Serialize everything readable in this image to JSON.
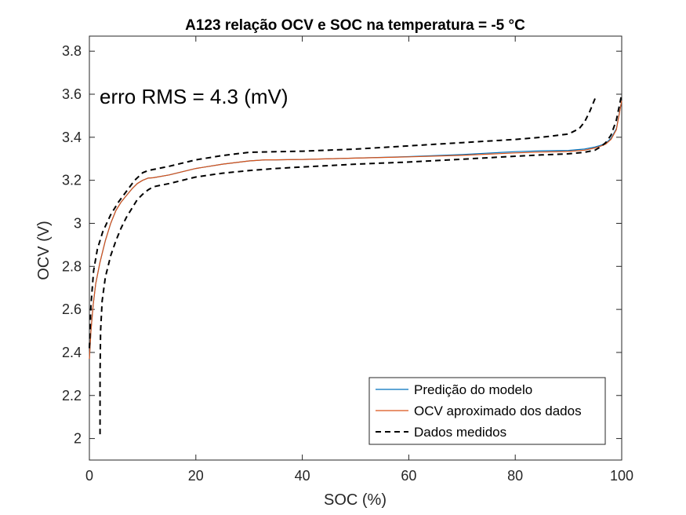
{
  "chart_data": {
    "type": "line",
    "title": "A123 relação OCV e SOC na temperatura = -5 °C",
    "xlabel": "SOC (%)",
    "ylabel": "OCV (V)",
    "xlim": [
      0,
      100
    ],
    "ylim": [
      1.9,
      3.87
    ],
    "xticks": [
      0,
      20,
      40,
      60,
      80,
      100
    ],
    "yticks": [
      2,
      2.2,
      2.4,
      2.6,
      2.8,
      3,
      3.2,
      3.4,
      3.6,
      3.8
    ],
    "grid": false,
    "legend_position": "bottom-right",
    "annotation": "erro RMS =  4.3 (mV)",
    "series": [
      {
        "name": "Predição do modelo",
        "color": "#0072BD",
        "style": "solid",
        "x": [
          0,
          0.3,
          0.7,
          1.2,
          2,
          3,
          4,
          5,
          6,
          7,
          8,
          9,
          10,
          11,
          12,
          15,
          20,
          25,
          30,
          33,
          35,
          40,
          50,
          60,
          70,
          80,
          85,
          90,
          93,
          95,
          96,
          97,
          98,
          99,
          100
        ],
        "y": [
          2.37,
          2.5,
          2.62,
          2.72,
          2.82,
          2.92,
          3.0,
          3.06,
          3.1,
          3.13,
          3.16,
          3.185,
          3.2,
          3.21,
          3.212,
          3.225,
          3.255,
          3.275,
          3.29,
          3.295,
          3.295,
          3.297,
          3.303,
          3.31,
          3.32,
          3.333,
          3.337,
          3.339,
          3.345,
          3.355,
          3.362,
          3.372,
          3.395,
          3.44,
          3.57
        ]
      },
      {
        "name": "OCV aproximado dos dados",
        "color": "#D95319",
        "style": "solid",
        "x": [
          0,
          0.3,
          0.7,
          1.2,
          2,
          3,
          4,
          5,
          6,
          7,
          8,
          9,
          10,
          11,
          12,
          15,
          20,
          25,
          30,
          33,
          35,
          40,
          50,
          60,
          70,
          80,
          85,
          90,
          93,
          95,
          96,
          97,
          98,
          99,
          100
        ],
        "y": [
          2.37,
          2.5,
          2.62,
          2.72,
          2.82,
          2.92,
          3.0,
          3.06,
          3.1,
          3.13,
          3.16,
          3.185,
          3.2,
          3.21,
          3.212,
          3.225,
          3.255,
          3.275,
          3.29,
          3.295,
          3.295,
          3.297,
          3.303,
          3.309,
          3.316,
          3.327,
          3.331,
          3.334,
          3.34,
          3.35,
          3.358,
          3.368,
          3.39,
          3.435,
          3.57
        ]
      },
      {
        "name": "Dados medidos",
        "color": "#000000",
        "style": "dashed",
        "segments": [
          {
            "x": [
              0,
              0.3,
              0.8,
              1.5,
              2.5,
              4,
              5.5,
              7,
              8.5,
              10,
              11,
              12,
              15,
              20,
              25,
              30,
              35,
              40,
              50,
              60,
              70,
              80,
              85,
              90,
              92,
              93,
              94,
              95
            ],
            "y": [
              2.42,
              2.62,
              2.78,
              2.88,
              2.96,
              3.04,
              3.1,
              3.15,
              3.2,
              3.235,
              3.245,
              3.25,
              3.265,
              3.295,
              3.315,
              3.33,
              3.333,
              3.335,
              3.345,
              3.36,
              3.375,
              3.39,
              3.4,
              3.415,
              3.44,
              3.47,
              3.52,
              3.58
            ]
          },
          {
            "x": [
              2,
              2,
              2.1,
              2.4,
              3,
              4,
              5,
              6,
              7,
              8,
              9,
              10,
              11,
              12,
              15,
              20,
              25,
              30,
              35,
              40,
              50,
              60,
              70,
              80,
              85,
              90,
              93,
              95,
              96,
              97,
              98,
              99,
              100
            ],
            "y": [
              2.02,
              2.3,
              2.5,
              2.64,
              2.75,
              2.85,
              2.92,
              2.98,
              3.03,
              3.07,
              3.11,
              3.135,
              3.155,
              3.17,
              3.185,
              3.215,
              3.233,
              3.245,
              3.255,
              3.262,
              3.275,
              3.285,
              3.298,
              3.312,
              3.318,
              3.323,
              3.33,
              3.34,
              3.355,
              3.375,
              3.41,
              3.48,
              3.6
            ]
          }
        ]
      }
    ]
  }
}
